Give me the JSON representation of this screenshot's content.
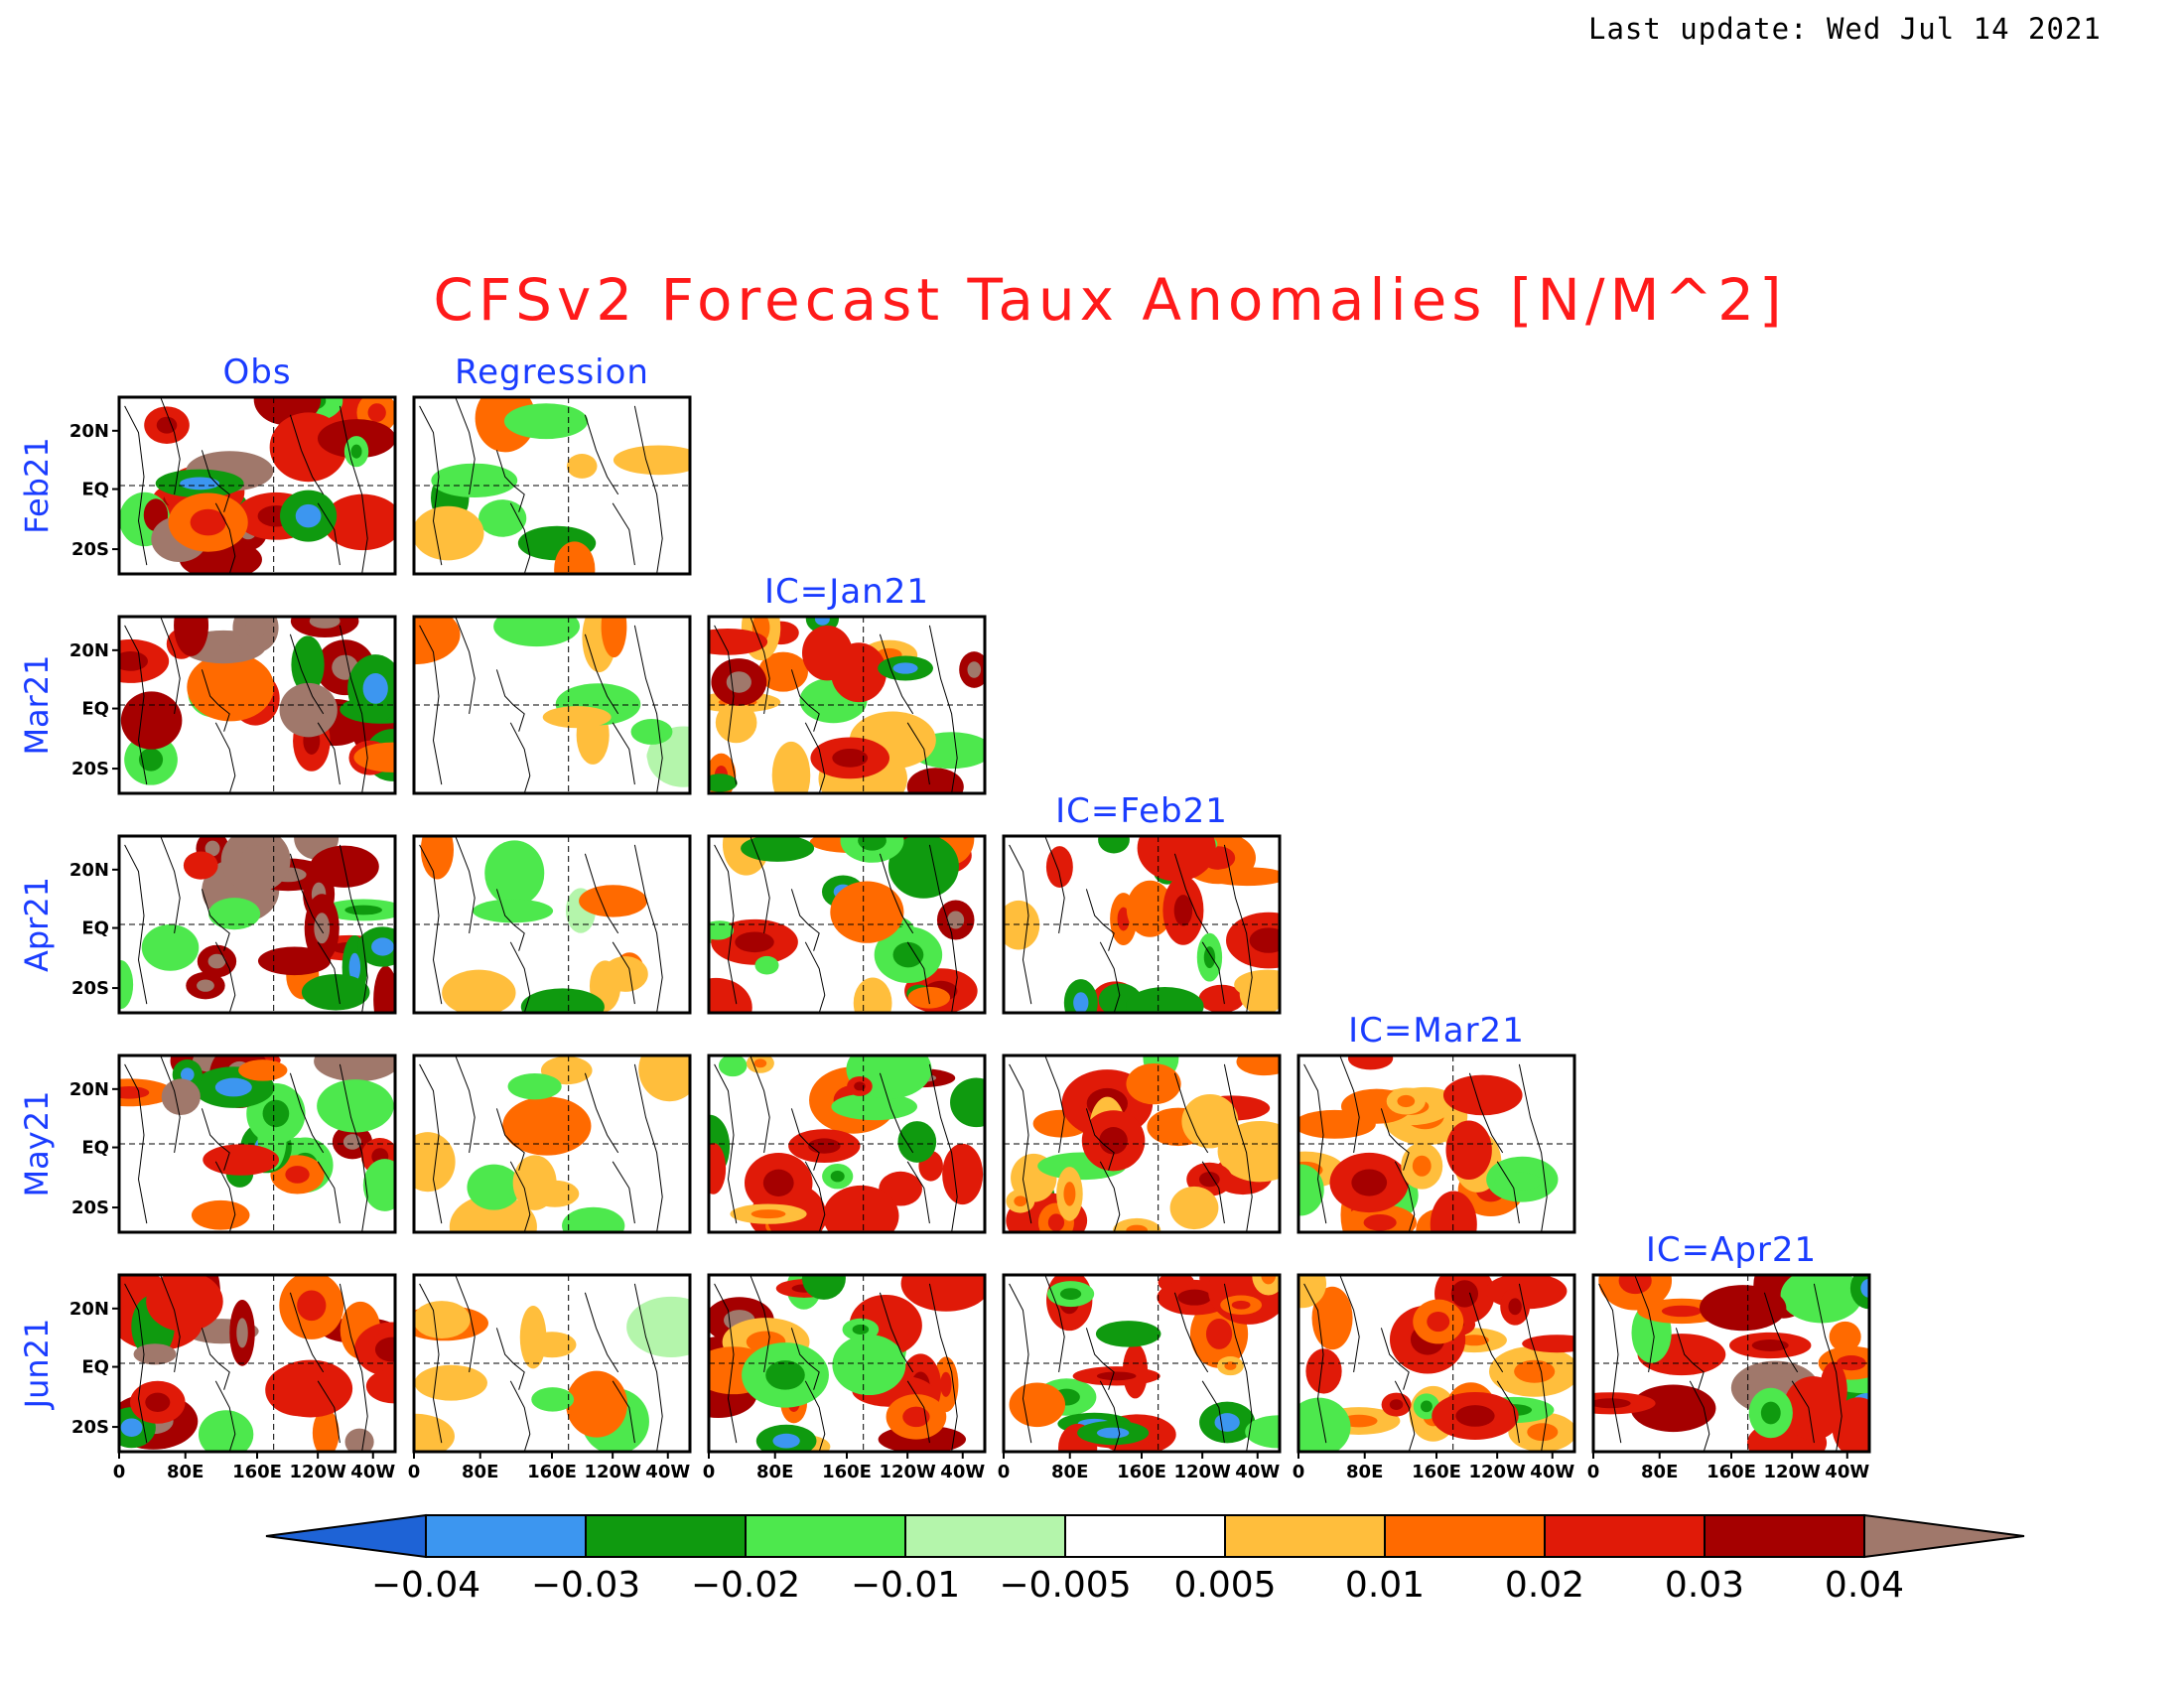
{
  "last_update": "Last update: Wed Jul 14 2021",
  "title": "CFSv2 Forecast Taux Anomalies [N/M^2]",
  "chart_data": {
    "type": "heatmap",
    "title": "CFSv2 Forecast Taux Anomalies [N/M^2]",
    "column_labels": [
      "Obs",
      "Regression",
      "IC=Jan21",
      "IC=Feb21",
      "IC=Mar21",
      "IC=Apr21",
      "IC=May21"
    ],
    "row_labels": [
      "Feb21",
      "Mar21",
      "Apr21",
      "May21",
      "Jun21"
    ],
    "ylabels": [
      "20N",
      "EQ",
      "20S"
    ],
    "xlabels": [
      "0",
      "80E",
      "160E",
      "120W",
      "40W"
    ],
    "colorbar": {
      "ticks": [
        "−0.04",
        "−0.03",
        "−0.02",
        "−0.01",
        "−0.005",
        "0.005",
        "0.01",
        "0.02",
        "0.03",
        "0.04"
      ],
      "colors": [
        "#1e63d6",
        "#3c96f0",
        "#0f9a0f",
        "#4de84d",
        "#b4f5ab",
        "#ffffff",
        "#ffbe3c",
        "#ff6a00",
        "#e01a08",
        "#a50000",
        "#a0786b"
      ]
    }
  }
}
